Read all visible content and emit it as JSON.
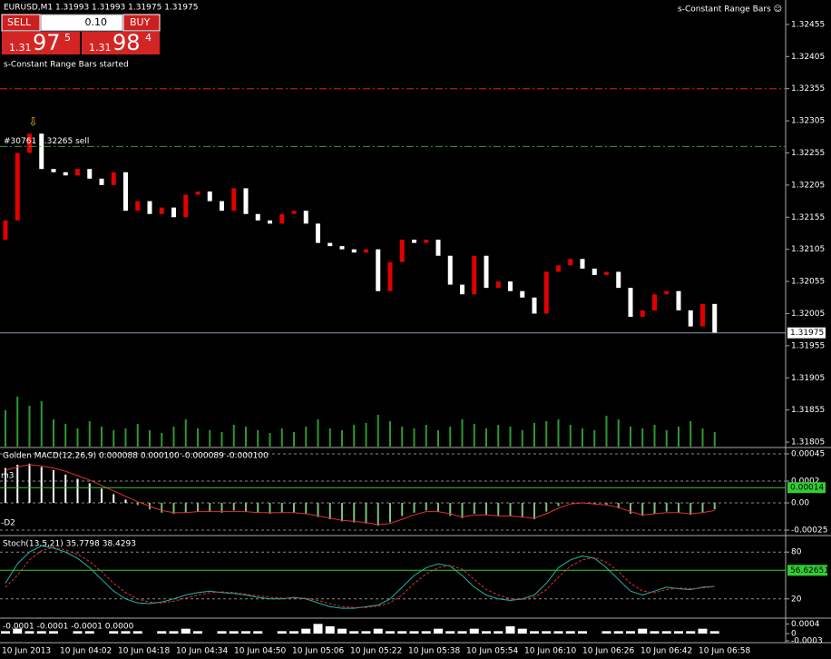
{
  "trade_panel": {
    "symbol_line": "EURUSD,M1  1.31993 1.31993 1.31975 1.31975",
    "sell": "SELL",
    "buy": "BUY",
    "lot": "0.10",
    "sell_prefix": "1.31",
    "sell_big": "97",
    "sell_small": "5",
    "buy_prefix": "1.31",
    "buy_big": "98",
    "buy_small": "4",
    "status": "s-Constant Range Bars started",
    "indicator_name": "s-Constant Range Bars ☺"
  },
  "chart_data": [
    {
      "type": "candlestick",
      "ylim": [
        1.31798,
        1.32493
      ],
      "yticks": [
        1.32455,
        1.32405,
        1.32355,
        1.32305,
        1.32255,
        1.32205,
        1.32155,
        1.32105,
        1.32055,
        1.32005,
        1.31955,
        1.31905,
        1.31855,
        1.31805
      ],
      "up_color": "#e00000",
      "down_color": "#ffffff",
      "open": [
        1.3212,
        1.3215,
        1.32255,
        1.32285,
        1.3223,
        1.32225,
        1.3222,
        1.3223,
        1.32215,
        1.32205,
        1.32225,
        1.32165,
        1.3218,
        1.3216,
        1.3217,
        1.32155,
        1.3219,
        1.32195,
        1.3218,
        1.32165,
        1.322,
        1.3216,
        1.3215,
        1.32145,
        1.3216,
        1.32165,
        1.32145,
        1.32115,
        1.3211,
        1.32105,
        1.321,
        1.32105,
        1.3204,
        1.32085,
        1.3212,
        1.32115,
        1.3212,
        1.32095,
        1.3205,
        1.32035,
        1.32095,
        1.32045,
        1.32055,
        1.3204,
        1.3203,
        1.32005,
        1.3207,
        1.3208,
        1.3209,
        1.32075,
        1.32065,
        1.3207,
        1.32045,
        1.32,
        1.3201,
        1.32035,
        1.3204,
        1.3201,
        1.31985,
        1.3202
      ],
      "close": [
        1.3215,
        1.32255,
        1.32285,
        1.3223,
        1.32225,
        1.3222,
        1.3223,
        1.32215,
        1.32205,
        1.32225,
        1.32165,
        1.3218,
        1.3216,
        1.3217,
        1.32155,
        1.3219,
        1.32195,
        1.3218,
        1.32165,
        1.322,
        1.3216,
        1.3215,
        1.32145,
        1.3216,
        1.32165,
        1.32145,
        1.32115,
        1.3211,
        1.32105,
        1.321,
        1.32105,
        1.3204,
        1.32085,
        1.3212,
        1.32115,
        1.3212,
        1.32095,
        1.3205,
        1.32035,
        1.32095,
        1.32045,
        1.32055,
        1.3204,
        1.3203,
        1.32005,
        1.3207,
        1.3208,
        1.3209,
        1.32075,
        1.32065,
        1.3207,
        1.32045,
        1.32,
        1.3201,
        1.32035,
        1.3204,
        1.3201,
        1.31985,
        1.3202,
        1.31975
      ],
      "volumes": [
        40,
        55,
        45,
        50,
        30,
        25,
        20,
        28,
        22,
        18,
        20,
        25,
        18,
        15,
        22,
        30,
        20,
        18,
        16,
        24,
        22,
        18,
        15,
        20,
        16,
        22,
        30,
        20,
        18,
        24,
        26,
        35,
        28,
        22,
        20,
        24,
        18,
        22,
        30,
        25,
        20,
        24,
        22,
        18,
        26,
        28,
        30,
        24,
        20,
        18,
        34,
        30,
        22,
        20,
        24,
        18,
        22,
        28,
        20,
        16
      ],
      "volume_color": "#2e9a2e",
      "current_price": {
        "value": 1.31975,
        "label": "1.31975"
      },
      "stop_level": 1.32355,
      "order_level": 1.32265,
      "order_label": "#30761 1.32265 sell"
    },
    {
      "type": "bar",
      "title": "Golden MACD(12,26,9) 0.000088 0.000100 -0.000089 -0.000100",
      "left_labels": [
        "m3",
        "-D2"
      ],
      "ylim": [
        -0.0003,
        0.0005
      ],
      "yticks": [
        0.00045,
        0.0002,
        {
          "value": 0,
          "label": "0.00"
        },
        -0.00025
      ],
      "grid": true,
      "level": 0.00014,
      "values": [
        0.00032,
        0.00035,
        0.00036,
        0.00033,
        0.0003,
        0.00026,
        0.00022,
        0.00018,
        0.00013,
        8e-05,
        3e-05,
        -2e-05,
        -6e-05,
        -9e-05,
        -0.0001,
        -9e-05,
        -8e-05,
        -8e-05,
        -9e-05,
        -7e-05,
        -8e-05,
        -9e-05,
        -0.0001,
        -9e-05,
        -9e-05,
        -0.0001,
        -0.00013,
        -0.00015,
        -0.00017,
        -0.00018,
        -0.00019,
        -0.00021,
        -0.00018,
        -0.00012,
        -9e-05,
        -7e-05,
        -8e-05,
        -0.00012,
        -0.00014,
        -0.0001,
        -0.00011,
        -0.00012,
        -0.00012,
        -0.00013,
        -0.00015,
        -8e-05,
        -3e-05,
        0,
        0,
        -1e-05,
        -2e-05,
        -5e-05,
        -0.0001,
        -0.00012,
        -0.0001,
        -8e-05,
        -9e-05,
        -0.00011,
        -9e-05,
        -6e-05
      ],
      "signal": [
        0.0003,
        0.00033,
        0.00035,
        0.00034,
        0.00032,
        0.00029,
        0.00025,
        0.00021,
        0.00016,
        0.00011,
        6e-05,
        1e-05,
        -3e-05,
        -7e-05,
        -9e-05,
        -9e-05,
        -8e-05,
        -8e-05,
        -8e-05,
        -8e-05,
        -8e-05,
        -9e-05,
        -9e-05,
        -9e-05,
        -9e-05,
        -0.0001,
        -0.00012,
        -0.00014,
        -0.00016,
        -0.00017,
        -0.00018,
        -0.0002,
        -0.00019,
        -0.00015,
        -0.00011,
        -8e-05,
        -8e-05,
        -0.0001,
        -0.00013,
        -0.00011,
        -0.00011,
        -0.00012,
        -0.00012,
        -0.00013,
        -0.00014,
        -0.0001,
        -5e-05,
        -1e-05,
        0,
        -1e-05,
        -2e-05,
        -4e-05,
        -8e-05,
        -0.00011,
        -0.0001,
        -9e-05,
        -9e-05,
        -0.0001,
        -9e-05,
        -7e-05
      ]
    },
    {
      "type": "line",
      "title": "Stoch(13,5,21) 35.7798 38.4293",
      "ylim": [
        0,
        100
      ],
      "yticks": [
        80,
        20
      ],
      "grid": true,
      "level": {
        "value": 56.62651,
        "label": "56.62651"
      },
      "main": [
        40,
        65,
        80,
        88,
        85,
        80,
        72,
        60,
        45,
        30,
        20,
        15,
        14,
        16,
        20,
        25,
        28,
        30,
        28,
        27,
        25,
        22,
        20,
        20,
        22,
        20,
        15,
        10,
        8,
        8,
        10,
        12,
        20,
        35,
        50,
        60,
        65,
        62,
        50,
        35,
        25,
        20,
        18,
        20,
        25,
        40,
        60,
        70,
        75,
        72,
        60,
        45,
        30,
        25,
        30,
        35,
        33,
        32,
        35,
        36
      ],
      "signal": [
        35,
        50,
        70,
        82,
        86,
        83,
        77,
        68,
        55,
        40,
        28,
        20,
        16,
        15,
        17,
        21,
        25,
        28,
        29,
        28,
        26,
        24,
        22,
        21,
        21,
        21,
        18,
        14,
        10,
        9,
        9,
        11,
        15,
        25,
        40,
        52,
        60,
        63,
        58,
        45,
        32,
        25,
        20,
        19,
        22,
        32,
        48,
        62,
        70,
        73,
        67,
        55,
        40,
        30,
        28,
        32,
        34,
        33,
        34,
        36
      ]
    },
    {
      "type": "bar",
      "title": "-0.0001 -0.0001 -0.0001 0.0000",
      "ylim": [
        -0.0003,
        0.0006
      ],
      "yticks": [
        0.0004,
        0,
        -0.0003
      ],
      "values": [
        0.0001,
        0.0002,
        0.0001,
        0.0001,
        0.0001,
        0,
        0.0001,
        0.0001,
        0,
        0.0001,
        0.0001,
        0.0001,
        0,
        0.0001,
        0.0001,
        0.0002,
        0.0001,
        0,
        0.0001,
        0.0001,
        0.0001,
        0.0001,
        0,
        0.0001,
        0.0001,
        0.0002,
        0.0004,
        0.0003,
        0.0002,
        0.0001,
        0.0001,
        0.0002,
        0.0001,
        0.0001,
        0.0001,
        0.0001,
        0.0002,
        0.0001,
        0.0001,
        0.0002,
        0.0001,
        0.0001,
        0.0003,
        0.0002,
        0.0001,
        0.0001,
        0.0001,
        0.0001,
        0.0001,
        0,
        0.0001,
        0.0001,
        0.0001,
        0.0002,
        0.0001,
        0.0001,
        0.0001,
        0.0001,
        0.0002,
        0.0001
      ]
    }
  ],
  "time_axis": [
    "10 Jun 2013",
    "10 Jun 04:02",
    "10 Jun 04:18",
    "10 Jun 04:34",
    "10 Jun 04:50",
    "10 Jun 05:06",
    "10 Jun 05:22",
    "10 Jun 05:38",
    "10 Jun 05:54",
    "10 Jun 06:10",
    "10 Jun 06:26",
    "10 Jun 06:42",
    "10 Jun 06:58"
  ]
}
